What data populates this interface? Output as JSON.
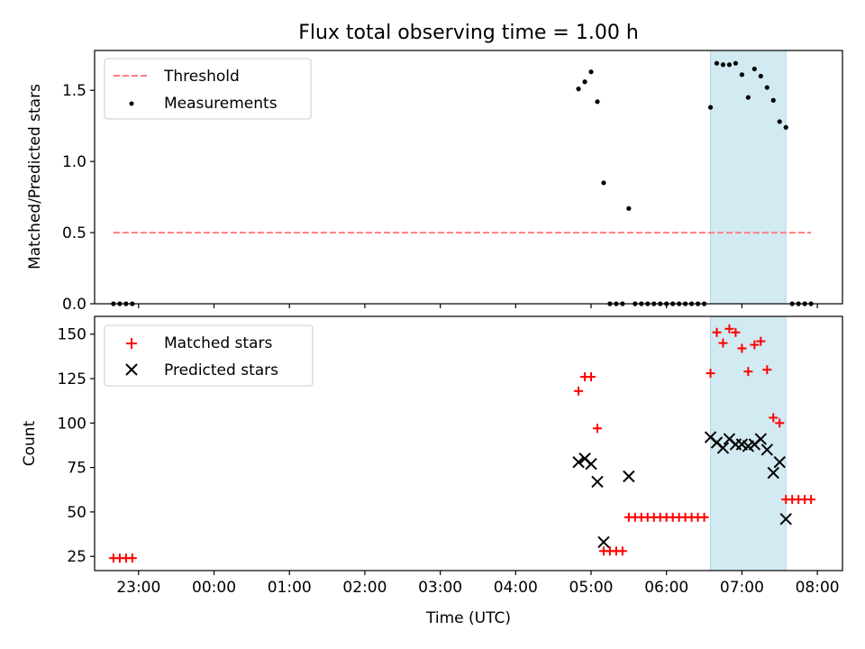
{
  "chart_data": [
    {
      "type": "scatter",
      "title": "Flux total observing time = 1.00 h",
      "xlabel": "",
      "ylabel": "Matched/Predicted stars",
      "ylim": [
        0,
        1.78
      ],
      "xlim": [
        "22:25",
        "08:20"
      ],
      "yticks": [
        "0.0",
        "0.5",
        "1.0",
        "1.5"
      ],
      "ytick_values": [
        0,
        0.5,
        1.0,
        1.5
      ],
      "shaded_span": [
        "06:35",
        "07:35"
      ],
      "shaded_color": "#add8e6",
      "legend": {
        "placement": "upper-left",
        "entries": [
          "Threshold",
          "Measurements"
        ]
      },
      "series": [
        {
          "name": "Threshold",
          "style": "dashed-line",
          "color": "#ff7f7f",
          "x": [
            "22:40",
            "07:55"
          ],
          "y": [
            0.5,
            0.5
          ]
        },
        {
          "name": "Measurements",
          "style": "dot",
          "color": "#000000",
          "x": [
            "22:40",
            "22:45",
            "22:50",
            "22:55",
            "04:50",
            "04:55",
            "05:00",
            "05:05",
            "05:10",
            "05:15",
            "05:20",
            "05:25",
            "05:30",
            "05:35",
            "05:40",
            "05:45",
            "05:50",
            "05:55",
            "06:00",
            "06:05",
            "06:10",
            "06:15",
            "06:20",
            "06:25",
            "06:30",
            "06:35",
            "06:40",
            "06:45",
            "06:50",
            "06:55",
            "07:00",
            "07:05",
            "07:10",
            "07:15",
            "07:20",
            "07:25",
            "07:30",
            "07:35",
            "07:40",
            "07:45",
            "07:50",
            "07:55"
          ],
          "y": [
            0,
            0,
            0,
            0,
            1.51,
            1.56,
            1.63,
            1.42,
            0.85,
            0,
            0,
            0,
            0.67,
            0,
            0,
            0,
            0,
            0,
            0,
            0,
            0,
            0,
            0,
            0,
            0,
            1.38,
            1.69,
            1.68,
            1.68,
            1.69,
            1.61,
            1.45,
            1.65,
            1.6,
            1.52,
            1.43,
            1.28,
            1.24,
            0,
            0,
            0,
            0
          ]
        }
      ]
    },
    {
      "type": "scatter",
      "title": "",
      "xlabel": "Time (UTC)",
      "ylabel": "Count",
      "ylim": [
        17,
        160
      ],
      "xlim": [
        "22:25",
        "08:20"
      ],
      "yticks": [
        "25",
        "50",
        "75",
        "100",
        "125",
        "150"
      ],
      "ytick_values": [
        25,
        50,
        75,
        100,
        125,
        150
      ],
      "xticks": [
        "23:00",
        "00:00",
        "01:00",
        "02:00",
        "03:00",
        "04:00",
        "05:00",
        "06:00",
        "07:00",
        "08:00"
      ],
      "xtick_values": [
        "23:00",
        "00:00",
        "01:00",
        "02:00",
        "03:00",
        "04:00",
        "05:00",
        "06:00",
        "07:00",
        "08:00"
      ],
      "shaded_span": [
        "06:35",
        "07:35"
      ],
      "shaded_color": "#add8e6",
      "legend": {
        "placement": "upper-left",
        "entries": [
          "Matched stars",
          "Predicted stars"
        ]
      },
      "series": [
        {
          "name": "Matched stars",
          "style": "plus",
          "color": "#ff0000",
          "x": [
            "22:40",
            "22:45",
            "22:50",
            "22:55",
            "04:50",
            "04:55",
            "05:00",
            "05:05",
            "05:10",
            "05:15",
            "05:20",
            "05:25",
            "05:30",
            "05:35",
            "05:40",
            "05:45",
            "05:50",
            "05:55",
            "06:00",
            "06:05",
            "06:10",
            "06:15",
            "06:20",
            "06:25",
            "06:30",
            "06:35",
            "06:40",
            "06:45",
            "06:50",
            "06:55",
            "07:00",
            "07:05",
            "07:10",
            "07:15",
            "07:20",
            "07:25",
            "07:30",
            "07:35",
            "07:40",
            "07:45",
            "07:50",
            "07:55"
          ],
          "y": [
            24,
            24,
            24,
            24,
            118,
            126,
            126,
            97,
            28,
            28,
            28,
            28,
            47,
            47,
            47,
            47,
            47,
            47,
            47,
            47,
            47,
            47,
            47,
            47,
            47,
            128,
            151,
            145,
            153,
            151,
            142,
            129,
            144,
            146,
            130,
            103,
            100,
            57,
            57,
            57,
            57,
            57
          ]
        },
        {
          "name": "Predicted stars",
          "style": "x",
          "color": "#000000",
          "x": [
            "04:50",
            "04:55",
            "05:00",
            "05:05",
            "05:10",
            "05:30",
            "06:35",
            "06:40",
            "06:45",
            "06:50",
            "06:55",
            "07:00",
            "07:05",
            "07:10",
            "07:15",
            "07:20",
            "07:25",
            "07:30",
            "07:35"
          ],
          "y": [
            78,
            80,
            77,
            67,
            33,
            70,
            92,
            89,
            86,
            91,
            88,
            88,
            87,
            88,
            91,
            85,
            72,
            78,
            46
          ]
        }
      ]
    }
  ]
}
